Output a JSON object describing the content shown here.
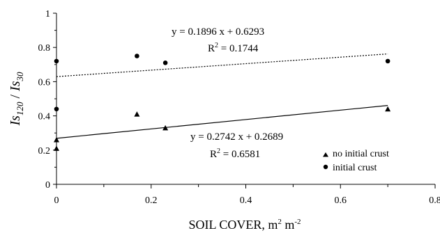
{
  "chart_data": {
    "type": "scatter",
    "xlabel": {
      "base": "SOIL COVER, m",
      "exp1": "2",
      "mid": " m",
      "exp2": "-2"
    },
    "ylabel": {
      "a": "Is",
      "a_sub": "120",
      "sep": " / ",
      "b": "Is",
      "b_sub": "30"
    },
    "xlim": [
      0,
      0.8
    ],
    "ylim": [
      0,
      1
    ],
    "x_ticks": [
      "0",
      "0.2",
      "0.4",
      "0.6",
      "0.8"
    ],
    "y_ticks": [
      "0",
      "0.2",
      "0.4",
      "0.6",
      "0.8",
      "1"
    ],
    "grid": false,
    "legend_position": "bottom-right",
    "series": [
      {
        "name": "no initial crust",
        "marker": "triangle",
        "color": "#000000",
        "x": [
          0,
          0,
          0.17,
          0.23,
          0.7
        ],
        "y": [
          0.21,
          0.26,
          0.41,
          0.33,
          0.44
        ],
        "trendline": {
          "slope": 0.2742,
          "intercept": 0.2689,
          "style": "solid",
          "equation": "y = 0.2742 x + 0.2689",
          "r2_label": "R",
          "r2_exp": "2",
          "r2_value": " = 0.6581"
        }
      },
      {
        "name": "initial crust",
        "marker": "circle",
        "color": "#000000",
        "x": [
          0,
          0,
          0.17,
          0.23,
          0.7
        ],
        "y": [
          0.44,
          0.72,
          0.75,
          0.71,
          0.72
        ],
        "trendline": {
          "slope": 0.1896,
          "intercept": 0.6293,
          "style": "dotted",
          "equation": "y = 0.1896 x + 0.6293",
          "r2_label": "R",
          "r2_exp": "2",
          "r2_value": " = 0.1744"
        }
      }
    ]
  }
}
